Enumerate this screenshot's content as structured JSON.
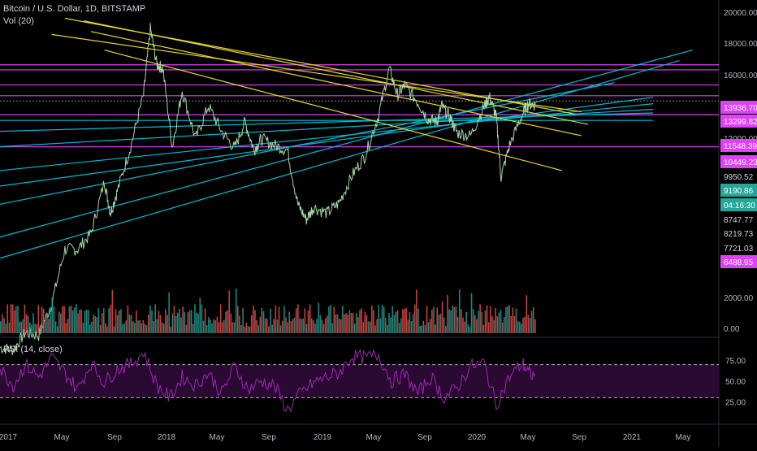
{
  "header": {
    "symbol": "Bitcoin / U.S. Dollar, 1D, BITSTAMP",
    "volume": "Vol (20)"
  },
  "rsi": {
    "title": "RSI (14, close)"
  },
  "colors": {
    "background": "#000000",
    "price_up": "#a5d6a7",
    "volume_up": "#26a69a",
    "volume_down": "#ef5350",
    "trend_yellow": "#e6d72a",
    "channel_cyan": "#00bcd4",
    "level_magenta": "#e040fb",
    "rsi_line": "#9c27b0",
    "rsi_band": "#2a0a33",
    "last_price_badge": "#26a69a"
  },
  "chart_data": {
    "type": "line",
    "title": "Bitcoin / U.S. Dollar, 1D, BITSTAMP",
    "x_ticks": [
      "2017",
      "May",
      "Sep",
      "2018",
      "May",
      "Sep",
      "2019",
      "May",
      "Sep",
      "2020",
      "May",
      "Sep",
      "2021",
      "May"
    ],
    "x_range": [
      "2017-01-01",
      "2021-08-01"
    ],
    "y_scale": "log",
    "y_ticks": [
      20000,
      18000,
      16000,
      12000,
      2000,
      0
    ],
    "y_tick_labels": [
      "20000.00",
      "18000.00",
      "16000.00",
      "12000.00",
      "2000.00",
      "0.00"
    ],
    "price_series": {
      "name": "BTCUSD",
      "points": [
        [
          "2017-01-01",
          1000
        ],
        [
          "2017-02-01",
          980
        ],
        [
          "2017-03-01",
          1150
        ],
        [
          "2017-04-01",
          1120
        ],
        [
          "2017-05-01",
          1500
        ],
        [
          "2017-06-01",
          2500
        ],
        [
          "2017-07-01",
          2500
        ],
        [
          "2017-08-01",
          2900
        ],
        [
          "2017-09-01",
          4700
        ],
        [
          "2017-09-15",
          3500
        ],
        [
          "2017-10-01",
          4300
        ],
        [
          "2017-11-01",
          6500
        ],
        [
          "2017-12-01",
          10500
        ],
        [
          "2017-12-17",
          19500
        ],
        [
          "2018-01-01",
          14000
        ],
        [
          "2018-01-15",
          13500
        ],
        [
          "2018-02-06",
          6500
        ],
        [
          "2018-03-01",
          11000
        ],
        [
          "2018-04-01",
          7000
        ],
        [
          "2018-05-01",
          9500
        ],
        [
          "2018-06-01",
          7500
        ],
        [
          "2018-07-01",
          6400
        ],
        [
          "2018-07-25",
          8200
        ],
        [
          "2018-08-15",
          6300
        ],
        [
          "2018-09-01",
          7000
        ],
        [
          "2018-10-01",
          6600
        ],
        [
          "2018-11-01",
          6300
        ],
        [
          "2018-11-25",
          3800
        ],
        [
          "2018-12-15",
          3300
        ],
        [
          "2019-01-01",
          3700
        ],
        [
          "2019-02-01",
          3500
        ],
        [
          "2019-03-01",
          3850
        ],
        [
          "2019-04-01",
          5000
        ],
        [
          "2019-05-01",
          6000
        ],
        [
          "2019-06-01",
          8700
        ],
        [
          "2019-06-26",
          13500
        ],
        [
          "2019-07-15",
          10500
        ],
        [
          "2019-08-01",
          11500
        ],
        [
          "2019-09-01",
          9800
        ],
        [
          "2019-09-24",
          8400
        ],
        [
          "2019-10-15",
          8200
        ],
        [
          "2019-10-26",
          9500
        ],
        [
          "2019-11-15",
          8500
        ],
        [
          "2019-12-01",
          7400
        ],
        [
          "2020-01-01",
          7200
        ],
        [
          "2020-02-01",
          9400
        ],
        [
          "2020-02-14",
          10400
        ],
        [
          "2020-03-01",
          8600
        ],
        [
          "2020-03-12",
          4900
        ],
        [
          "2020-04-01",
          6600
        ],
        [
          "2020-05-01",
          8800
        ],
        [
          "2020-05-15",
          9700
        ],
        [
          "2020-06-01",
          9600
        ]
      ]
    },
    "price_labels": [
      {
        "label": "13936.70",
        "color": "#e040fb"
      },
      {
        "label": "13299.82",
        "color": "#e040fb"
      },
      {
        "label": "11548.39",
        "color": "#e040fb"
      },
      {
        "label": "10449.23",
        "color": "#e040fb"
      },
      {
        "label": "9950.52",
        "color": "none"
      },
      {
        "label": "9190.86",
        "color": "#26a69a"
      },
      {
        "label": "04:16:30",
        "color": "#26a69a"
      },
      {
        "label": "8747.77",
        "color": "none"
      },
      {
        "label": "8219.73",
        "color": "none"
      },
      {
        "label": "7721.03",
        "color": "none"
      },
      {
        "label": "6488.95",
        "color": "#e040fb"
      }
    ],
    "horizontal_levels": [
      13936.7,
      13299.82,
      11548.39,
      10449.23,
      9950.52,
      8747.77,
      6488.95
    ],
    "yellow_trendlines": [
      {
        "from": [
          "2017-06-01",
          21500
        ],
        "to": [
          "2020-09-01",
          8800
        ]
      },
      {
        "from": [
          "2017-07-15",
          21000
        ],
        "to": [
          "2020-10-01",
          8000
        ]
      },
      {
        "from": [
          "2017-08-01",
          19000
        ],
        "to": [
          "2020-09-15",
          7200
        ]
      },
      {
        "from": [
          "2017-09-01",
          16000
        ],
        "to": [
          "2020-08-01",
          5200
        ]
      },
      {
        "from": [
          "2017-05-01",
          18500
        ],
        "to": [
          "2020-09-15",
          9000
        ]
      }
    ],
    "cyan_channel_lines": [
      {
        "from": [
          "2017-01-01",
          2800
        ],
        "to": [
          "2021-06-01",
          16000
        ]
      },
      {
        "from": [
          "2017-01-01",
          2300
        ],
        "to": [
          "2021-05-01",
          14500
        ]
      },
      {
        "from": [
          "2017-01-01",
          3800
        ],
        "to": [
          "2020-12-01",
          11800
        ]
      },
      {
        "from": [
          "2017-01-01",
          4500
        ],
        "to": [
          "2021-03-01",
          10300
        ]
      },
      {
        "from": [
          "2017-01-01",
          5200
        ],
        "to": [
          "2021-03-01",
          9700
        ]
      },
      {
        "from": [
          "2017-01-01",
          6500
        ],
        "to": [
          "2021-03-01",
          9200
        ]
      },
      {
        "from": [
          "2017-01-01",
          7500
        ],
        "to": [
          "2021-03-01",
          8900
        ]
      },
      {
        "from": [
          "2017-01-01",
          8300
        ],
        "to": [
          "2021-03-01",
          8300
        ]
      }
    ],
    "rsi": {
      "name": "RSI (14, close)",
      "y_ticks": [
        75,
        50,
        25
      ],
      "y_tick_labels": [
        "75.00",
        "50.00",
        "25.00"
      ],
      "overbought": 70,
      "oversold": 30,
      "points": [
        [
          "2017-01-01",
          65
        ],
        [
          "2017-02-01",
          45
        ],
        [
          "2017-03-01",
          70
        ],
        [
          "2017-04-01",
          55
        ],
        [
          "2017-05-01",
          78
        ],
        [
          "2017-06-01",
          60
        ],
        [
          "2017-07-01",
          40
        ],
        [
          "2017-08-01",
          72
        ],
        [
          "2017-09-01",
          48
        ],
        [
          "2017-10-01",
          65
        ],
        [
          "2017-11-01",
          70
        ],
        [
          "2017-12-01",
          85
        ],
        [
          "2018-01-01",
          45
        ],
        [
          "2018-02-01",
          30
        ],
        [
          "2018-03-01",
          55
        ],
        [
          "2018-04-01",
          45
        ],
        [
          "2018-05-01",
          60
        ],
        [
          "2018-06-01",
          35
        ],
        [
          "2018-07-01",
          68
        ],
        [
          "2018-08-01",
          40
        ],
        [
          "2018-09-01",
          50
        ],
        [
          "2018-10-01",
          45
        ],
        [
          "2018-11-01",
          15
        ],
        [
          "2018-12-01",
          35
        ],
        [
          "2019-01-01",
          48
        ],
        [
          "2019-02-01",
          55
        ],
        [
          "2019-03-01",
          60
        ],
        [
          "2019-04-01",
          80
        ],
        [
          "2019-05-01",
          78
        ],
        [
          "2019-06-01",
          82
        ],
        [
          "2019-07-01",
          50
        ],
        [
          "2019-08-01",
          58
        ],
        [
          "2019-09-01",
          35
        ],
        [
          "2019-10-01",
          55
        ],
        [
          "2019-11-01",
          30
        ],
        [
          "2019-12-01",
          42
        ],
        [
          "2020-01-01",
          68
        ],
        [
          "2020-02-01",
          72
        ],
        [
          "2020-03-01",
          22
        ],
        [
          "2020-04-01",
          55
        ],
        [
          "2020-05-01",
          72
        ],
        [
          "2020-05-15",
          60
        ],
        [
          "2020-06-01",
          55
        ]
      ]
    },
    "volume": {
      "name": "Vol (20)",
      "y_ticks": [
        2000,
        0
      ],
      "y_tick_labels": [
        "2000.00",
        "0.00"
      ]
    }
  }
}
